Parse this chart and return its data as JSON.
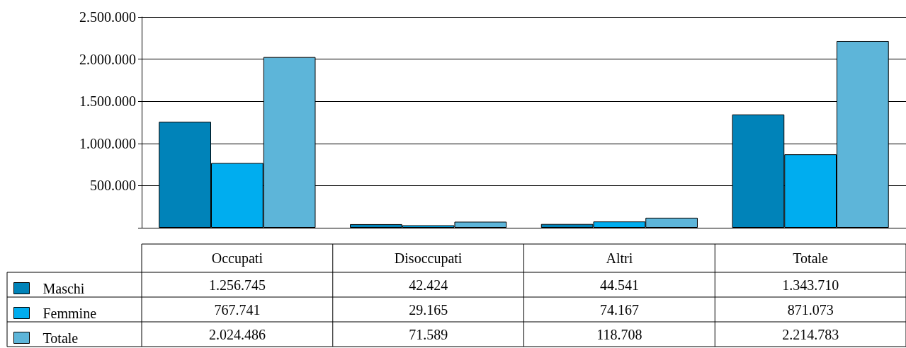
{
  "chart_data": {
    "type": "bar",
    "categories": [
      "Occupati",
      "Disoccupati",
      "Altri",
      "Totale"
    ],
    "series": [
      {
        "name": "Maschi",
        "color": "#0083b9",
        "values": [
          1256745,
          42424,
          44541,
          1343710
        ],
        "value_labels": [
          "1.256.745",
          "42.424",
          "44.541",
          "1.343.710"
        ]
      },
      {
        "name": "Femmine",
        "color": "#00adef",
        "values": [
          767741,
          29165,
          74167,
          871073
        ],
        "value_labels": [
          "767.741",
          "29.165",
          "74.167",
          "871.073"
        ]
      },
      {
        "name": "Totale",
        "color": "#5db5d9",
        "values": [
          2024486,
          71589,
          118708,
          2214783
        ],
        "value_labels": [
          "2.024.486",
          "71.589",
          "118.708",
          "2.214.783"
        ]
      }
    ],
    "ylim": [
      0,
      2500000
    ],
    "yticks": [
      {
        "value": 0,
        "label": null
      },
      {
        "value": 500000,
        "label": "500.000"
      },
      {
        "value": 1000000,
        "label": "1.000.000"
      },
      {
        "value": 1500000,
        "label": "1.500.000"
      },
      {
        "value": 2000000,
        "label": "2.000.000"
      },
      {
        "value": 2500000,
        "label": "2.500.000"
      }
    ],
    "grid": "y",
    "legend": "bottom"
  }
}
